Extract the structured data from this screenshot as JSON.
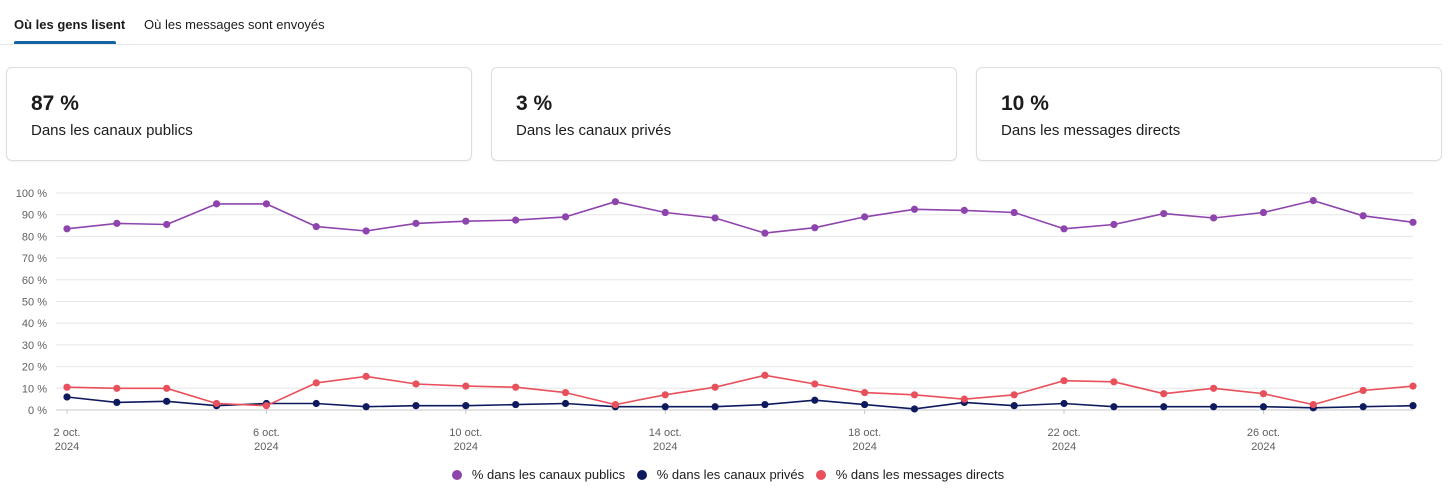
{
  "tabs": [
    {
      "label": "Où les gens lisent",
      "active": true
    },
    {
      "label": "Où les messages sont envoyés",
      "active": false
    }
  ],
  "cards": [
    {
      "value": "87 %",
      "label": "Dans les canaux publics"
    },
    {
      "value": "3 %",
      "label": "Dans les canaux privés"
    },
    {
      "value": "10 %",
      "label": "Dans les messages directs"
    }
  ],
  "chart_data": {
    "type": "line",
    "y_ticks": [
      "0 %",
      "10 %",
      "20 %",
      "30 %",
      "40 %",
      "50 %",
      "60 %",
      "70 %",
      "80 %",
      "90 %",
      "100 %"
    ],
    "ylim": [
      0,
      100
    ],
    "x_tick_labels": [
      {
        "index": 0,
        "line1": "2 oct.",
        "line2": "2024"
      },
      {
        "index": 4,
        "line1": "6 oct.",
        "line2": "2024"
      },
      {
        "index": 8,
        "line1": "10 oct.",
        "line2": "2024"
      },
      {
        "index": 12,
        "line1": "14 oct.",
        "line2": "2024"
      },
      {
        "index": 16,
        "line1": "18 oct.",
        "line2": "2024"
      },
      {
        "index": 20,
        "line1": "22 oct.",
        "line2": "2024"
      },
      {
        "index": 24,
        "line1": "26 oct.",
        "line2": "2024"
      }
    ],
    "series": [
      {
        "name": "% dans les canaux publics",
        "color": "#8e44ad",
        "values": [
          83.5,
          86,
          85.5,
          95,
          95,
          84.5,
          82.5,
          86,
          87,
          87.5,
          89,
          96,
          91,
          88.5,
          81.5,
          84,
          89,
          92.5,
          92,
          91,
          83.5,
          85.5,
          90.5,
          88.5,
          91,
          96.5,
          89.5,
          86.5
        ]
      },
      {
        "name": "% dans les canaux privés",
        "color": "#0e1a5e",
        "values": [
          6,
          3.5,
          4,
          2,
          3,
          3,
          1.5,
          2,
          2,
          2.5,
          3,
          1.5,
          1.5,
          1.5,
          2.5,
          4.5,
          2.5,
          0.5,
          3.5,
          2,
          3,
          1.5,
          1.5,
          1.5,
          1.5,
          1,
          1.5,
          2
        ]
      },
      {
        "name": "% dans les messages directs",
        "color": "#e8505b",
        "values": [
          10.5,
          10,
          10,
          3,
          2,
          12.5,
          15.5,
          12,
          11,
          10.5,
          8,
          2.5,
          7,
          10.5,
          16,
          12,
          8,
          7,
          5,
          7,
          13.5,
          13,
          7.5,
          10,
          7.5,
          2.5,
          9,
          11
        ]
      }
    ]
  }
}
